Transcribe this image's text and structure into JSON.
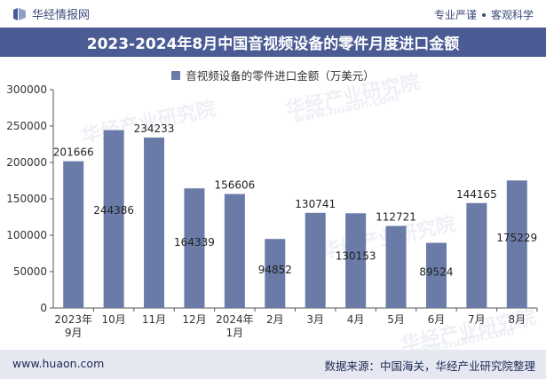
{
  "header": {
    "brand_name": "华经情报网",
    "tagline_1": "专业严谨",
    "tagline_2": "客观科学"
  },
  "title": "2023-2024年8月中国音视频设备的零件月度进口金额",
  "footer": {
    "url": "www.huaon.com",
    "source": "数据来源：中国海关，华经产业研究院整理"
  },
  "watermark": {
    "text_cn": "华经产业研究院",
    "text_url": "www.huaon.com"
  },
  "colors": {
    "bar": "#6a7ba8",
    "title_bg": "#4a5c93",
    "footer_bg": "#e5e8f1"
  },
  "chart_data": {
    "type": "bar",
    "categories": [
      "2023年\n9月",
      "10月",
      "11月",
      "12月",
      "2024年\n1月",
      "2月",
      "3月",
      "4月",
      "5月",
      "6月",
      "7月",
      "8月"
    ],
    "series": [
      {
        "name": "音视频设备的零件进口金额（万美元）",
        "values": [
          201666,
          244386,
          234233,
          164339,
          156606,
          94852,
          130741,
          130153,
          112721,
          89524,
          144165,
          175229
        ]
      }
    ],
    "value_labels": [
      "201666",
      "244386",
      "234233",
      "164339",
      "156606",
      "94852",
      "130741",
      "130153",
      "112721",
      "89524",
      "144165",
      "175229"
    ],
    "label_inside": [
      false,
      true,
      false,
      true,
      false,
      true,
      false,
      true,
      false,
      true,
      false,
      true
    ],
    "ylim": [
      0,
      300000
    ],
    "yticks": [
      0,
      50000,
      100000,
      150000,
      200000,
      250000,
      300000
    ],
    "legend_position": "top-center",
    "grid": false
  }
}
